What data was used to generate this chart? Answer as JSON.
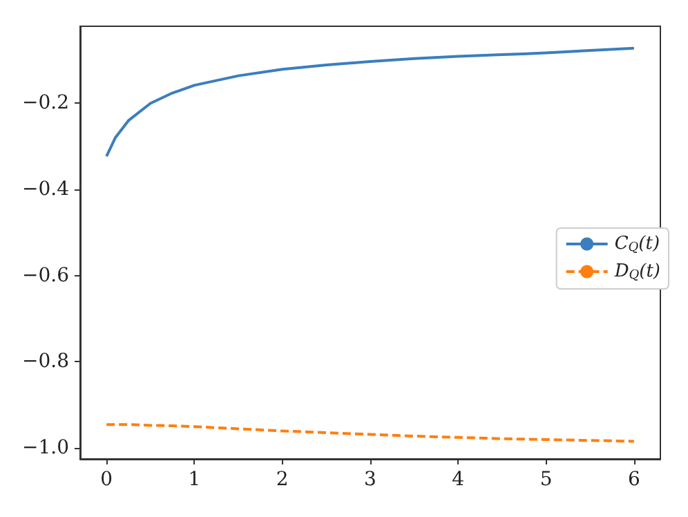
{
  "chart_data": {
    "type": "line",
    "x": [
      0,
      0.1,
      0.25,
      0.5,
      0.75,
      1,
      1.5,
      2,
      2.5,
      3,
      3.5,
      4,
      4.5,
      5,
      5.5,
      6
    ],
    "series": [
      {
        "name": "C$_{Q}$(t)",
        "color": "#3a7ebf",
        "line_style": "solid",
        "values": [
          -0.323,
          -0.28,
          -0.24,
          -0.2,
          -0.176,
          -0.158,
          -0.136,
          -0.121,
          -0.111,
          -0.103,
          -0.096,
          -0.091,
          -0.087,
          -0.083,
          -0.077,
          -0.072
        ]
      },
      {
        "name": "D$_{Q}$(t)",
        "color": "#ff7f0e",
        "line_style": "dashed",
        "values": [
          -0.946,
          -0.946,
          -0.946,
          -0.948,
          -0.949,
          -0.951,
          -0.956,
          -0.961,
          -0.965,
          -0.969,
          -0.973,
          -0.976,
          -0.979,
          -0.981,
          -0.983,
          -0.985
        ]
      }
    ],
    "xlim": [
      -0.3,
      6.3
    ],
    "xticks": [
      0,
      1,
      2,
      3,
      4,
      5,
      6
    ],
    "ylim": [
      -1.026,
      -0.021
    ],
    "yticks": [
      {
        "value": -1.0,
        "label": "−1.0"
      },
      {
        "value": -0.8,
        "label": "−0.8"
      },
      {
        "value": -0.6,
        "label": "−0.6"
      },
      {
        "value": -0.4,
        "label": "−0.4"
      },
      {
        "value": -0.2,
        "label": "−0.2"
      }
    ],
    "grid": false,
    "legend": "right",
    "marker": "none"
  }
}
